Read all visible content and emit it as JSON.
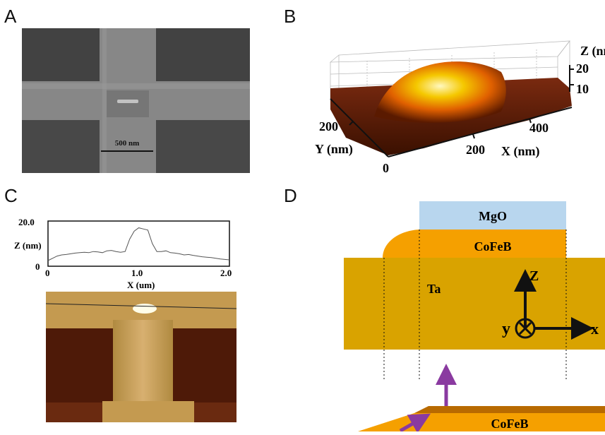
{
  "figure": {
    "panel_labels": [
      "A",
      "B",
      "C",
      "D"
    ]
  },
  "panelA": {
    "scale_bar_label": "500 nm",
    "colors": {
      "bg": "#4a4a4a",
      "bar": "#9a9a9a",
      "pad": "#555555"
    }
  },
  "panelB": {
    "z_label": "Z (nm)",
    "z_ticks": [
      "20",
      "10"
    ],
    "y_label": "Y (nm)",
    "y_ticks": [
      "200",
      "0"
    ],
    "x_label": "X (nm)",
    "x_ticks": [
      "200",
      "400"
    ]
  },
  "panelC": {
    "chart_data": {
      "type": "line",
      "xlabel": "X (um)",
      "ylabel": "Z (nm)",
      "xlim": [
        0,
        2.0
      ],
      "ylim": [
        0,
        20.0
      ],
      "x_ticks": [
        "0",
        "1.0",
        "2.0"
      ],
      "y_ticks": [
        "20.0",
        "0"
      ],
      "series": [
        {
          "x": [
            0,
            0.05,
            0.1,
            0.15,
            0.2,
            0.25,
            0.3,
            0.35,
            0.4,
            0.45,
            0.5,
            0.55,
            0.6,
            0.65,
            0.7,
            0.75,
            0.8,
            0.85,
            0.9,
            0.95,
            1.0,
            1.05,
            1.1,
            1.15,
            1.2,
            1.25,
            1.3,
            1.35,
            1.4,
            1.45,
            1.5,
            1.55,
            1.6,
            1.65,
            1.7,
            1.75,
            1.8,
            1.85,
            1.9,
            1.95,
            2.0
          ],
          "y": [
            2.5,
            3.5,
            4.5,
            5.0,
            5.2,
            5.5,
            5.8,
            6.0,
            6.2,
            6.0,
            6.5,
            6.3,
            6.0,
            6.8,
            7.0,
            6.5,
            6.2,
            6.5,
            12.0,
            15.5,
            17.0,
            16.5,
            16.0,
            10.0,
            6.5,
            6.5,
            6.8,
            6.0,
            5.8,
            5.5,
            5.0,
            5.2,
            4.8,
            4.5,
            4.2,
            4.0,
            3.8,
            3.5,
            3.2,
            3.0,
            2.8
          ]
        }
      ]
    }
  },
  "panelD": {
    "mgo": "MgO",
    "cofeb_top": "CoFeB",
    "ta": "Ta",
    "axis_z": "Z",
    "axis_y": "y",
    "axis_x": "x",
    "cofeb_bottom": "CoFeB",
    "colors": {
      "mgo": "#b8d6ee",
      "cofeb": "#f5a000",
      "ta": "#d9a300",
      "arrow": "#8a3aa0"
    }
  }
}
